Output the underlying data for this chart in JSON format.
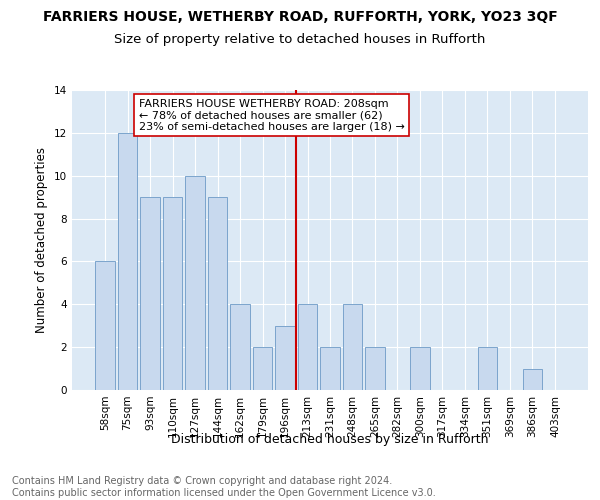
{
  "title": "FARRIERS HOUSE, WETHERBY ROAD, RUFFORTH, YORK, YO23 3QF",
  "subtitle": "Size of property relative to detached houses in Rufforth",
  "xlabel": "Distribution of detached houses by size in Rufforth",
  "ylabel": "Number of detached properties",
  "categories": [
    "58sqm",
    "75sqm",
    "93sqm",
    "110sqm",
    "127sqm",
    "144sqm",
    "162sqm",
    "179sqm",
    "196sqm",
    "213sqm",
    "231sqm",
    "248sqm",
    "265sqm",
    "282sqm",
    "300sqm",
    "317sqm",
    "334sqm",
    "351sqm",
    "369sqm",
    "386sqm",
    "403sqm"
  ],
  "values": [
    6,
    12,
    9,
    9,
    10,
    9,
    4,
    2,
    3,
    4,
    2,
    4,
    2,
    0,
    2,
    0,
    0,
    2,
    0,
    1,
    0
  ],
  "bar_color": "#c8d9ee",
  "bar_edge_color": "#7ba4cc",
  "vline_index": 8.5,
  "vline_color": "#cc0000",
  "annotation_text": "FARRIERS HOUSE WETHERBY ROAD: 208sqm\n← 78% of detached houses are smaller (62)\n23% of semi-detached houses are larger (18) →",
  "ylim": [
    0,
    14
  ],
  "yticks": [
    0,
    2,
    4,
    6,
    8,
    10,
    12,
    14
  ],
  "background_color": "#dce9f5",
  "footer_text": "Contains HM Land Registry data © Crown copyright and database right 2024.\nContains public sector information licensed under the Open Government Licence v3.0.",
  "title_fontsize": 10,
  "subtitle_fontsize": 9.5,
  "xlabel_fontsize": 9,
  "ylabel_fontsize": 8.5,
  "tick_fontsize": 7.5,
  "annotation_fontsize": 8,
  "footer_fontsize": 7
}
